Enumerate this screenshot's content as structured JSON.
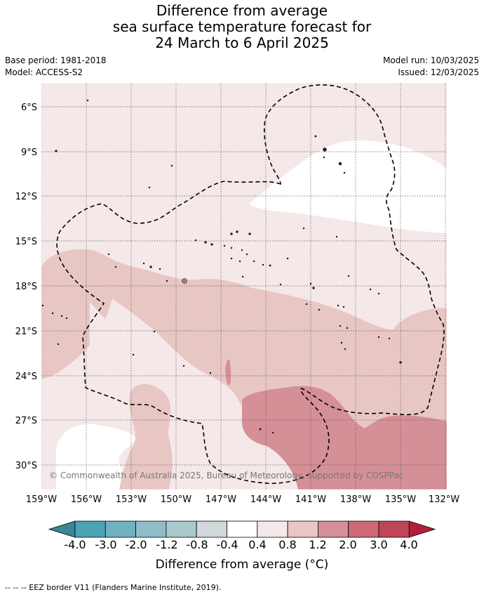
{
  "title": {
    "line1": "Difference from average",
    "line2": "sea surface temperature forecast for",
    "line3": "24 March to 6 April 2025"
  },
  "meta": {
    "base_period": "Base period: 1981-2018",
    "model": "Model: ACCESS-S2",
    "model_run": "Model run: 10/03/2025",
    "issued": "Issued: 12/03/2025"
  },
  "map": {
    "lat_labels": [
      "6°S",
      "9°S",
      "12°S",
      "15°S",
      "18°S",
      "21°S",
      "24°S",
      "27°S",
      "30°S"
    ],
    "lon_labels": [
      "159°W",
      "156°W",
      "153°W",
      "150°W",
      "147°W",
      "144°W",
      "141°W",
      "138°W",
      "135°W",
      "132°W"
    ],
    "copyright": "© Commonwealth of Australia 2025, Bureau of Meteorology, supported by COSPPac",
    "grid": true
  },
  "colorbar": {
    "title": "Difference from average (°C)",
    "tick_labels": [
      "-4.0",
      "-3.0",
      "-2.0",
      "-1.2",
      "-0.8",
      "-0.4",
      "0.4",
      "0.8",
      "1.2",
      "2.0",
      "3.0",
      "4.0"
    ],
    "colors": [
      "#3d8494",
      "#4aa4b4",
      "#6fb2bf",
      "#8fbdc7",
      "#a9c9cc",
      "#d3d8da",
      "#ffffff",
      "#f5e8e8",
      "#e8c6c4",
      "#d58f97",
      "#ce6a77",
      "#bf4656",
      "#b0203b"
    ]
  },
  "footer": "-- -- -- EEZ border V11 (Flanders Marine Institute, 2019)."
}
